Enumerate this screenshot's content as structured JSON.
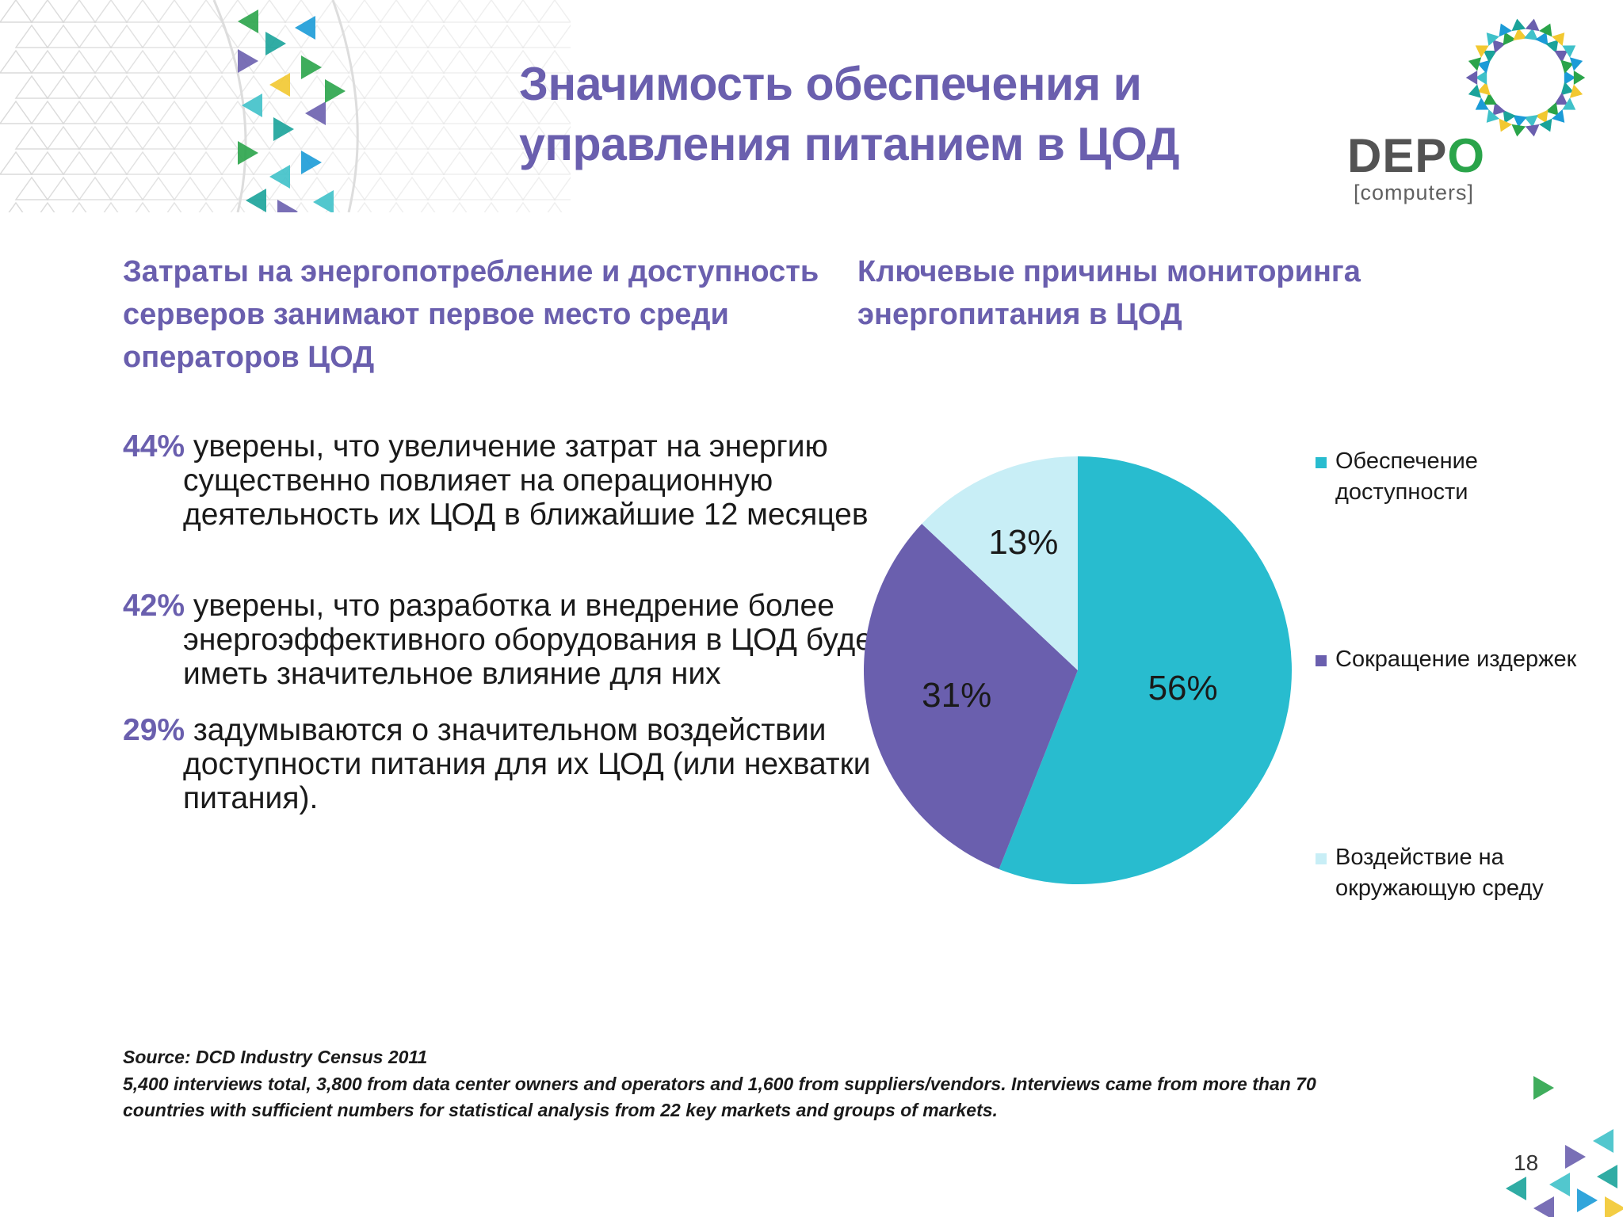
{
  "slide": {
    "title_lines": [
      "Значимость обеспечения и",
      "управления питанием в ЦОД"
    ],
    "page_number": "18"
  },
  "logo": {
    "brand_prefix": "DEP",
    "brand_o": "O",
    "subtitle": "[computers]",
    "ring_colors": [
      "#1b9bd7",
      "#1aa39a",
      "#6a5fae",
      "#2aa44a",
      "#f2c830",
      "#3fc1c9"
    ]
  },
  "left": {
    "heading": "Затраты на энергопотребление и доступность серверов занимают первое место среди операторов ЦОД",
    "stats": [
      {
        "percent": "44%",
        "text": " уверены, что увеличение затрат на энергию существенно повлияет на операционную деятельность их ЦОД в ближайшие 12 месяцев"
      },
      {
        "percent": "42%",
        "text": " уверены, что разработка и внедрение более энергоэффективного оборудования в ЦОД будет иметь значительное влияние для них"
      },
      {
        "percent": "29%",
        "text": " задумываются о значительном воздействии доступности питания для их ЦОД (или нехватки питания)."
      }
    ]
  },
  "right": {
    "heading": "Ключевые причины мониторинга энергопитания в ЦОД"
  },
  "chart_data": {
    "type": "pie",
    "title": "Ключевые причины мониторинга энергопитания в ЦОД",
    "legend_position": "right",
    "start_angle_deg": 0,
    "direction": "clockwise",
    "slices": [
      {
        "label": "Обеспечение доступности",
        "value": 56,
        "display": "56%",
        "color": "#28bccf"
      },
      {
        "label": "Сокращение издержек",
        "value": 31,
        "display": "31%",
        "color": "#6a5fae"
      },
      {
        "label": "Воздействие на окружающую среду",
        "value": 13,
        "display": "13%",
        "color": "#c8eef6"
      }
    ]
  },
  "source": {
    "title": "Source: DCD Industry Census 2011",
    "note": "5,400 interviews total, 3,800 from data center owners and operators and 1,600 from suppliers/vendors. Interviews came from more than 70 countries with sufficient numbers for statistical analysis from 22 key markets and groups of markets."
  },
  "decoration": {
    "pattern_colors": [
      "#2aa44a",
      "#1aa39a",
      "#6a5fae",
      "#3fc1c9",
      "#f2c830",
      "#1b9bd7"
    ]
  }
}
